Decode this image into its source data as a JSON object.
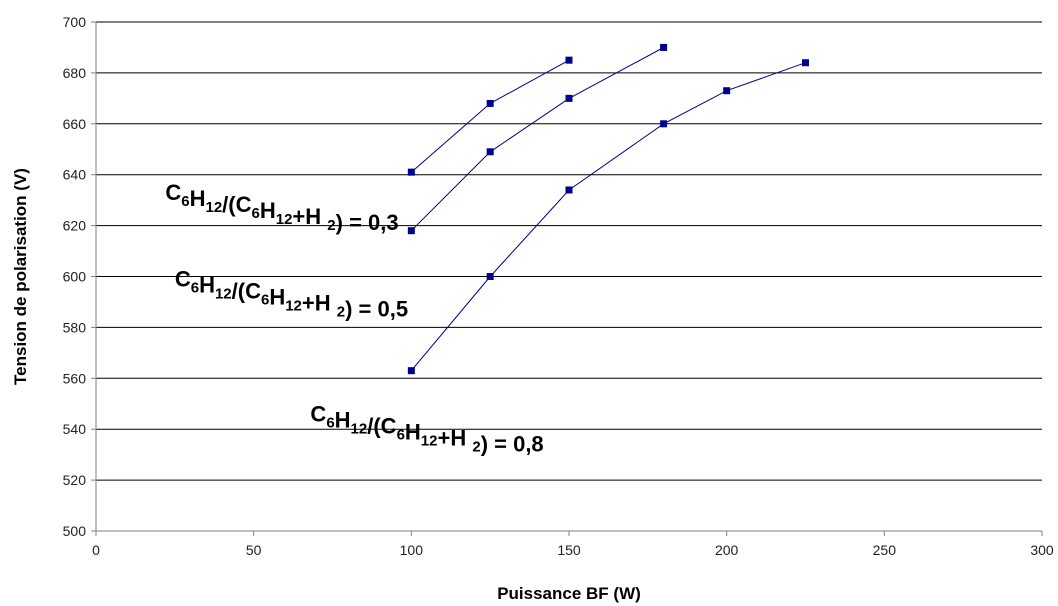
{
  "chart_data": {
    "type": "line",
    "title": "",
    "xlabel": "Puissance BF  (W)",
    "ylabel": "Tension de polarisation (V)",
    "xlim": [
      0,
      300
    ],
    "ylim": [
      500,
      700
    ],
    "xticks": [
      0,
      50,
      100,
      150,
      200,
      250,
      300
    ],
    "yticks": [
      500,
      520,
      540,
      560,
      580,
      600,
      620,
      640,
      660,
      680,
      700
    ],
    "grid": "horizontal",
    "legend": "none",
    "colors": {
      "line": "#00008b",
      "marker": "#00008b",
      "grid": "#000000",
      "axis": "#808080"
    },
    "series": [
      {
        "x": [
          100,
          125,
          150
        ],
        "y": [
          641,
          668,
          685
        ]
      },
      {
        "x": [
          100,
          125,
          150,
          180
        ],
        "y": [
          618,
          649,
          670,
          690
        ]
      },
      {
        "x": [
          100,
          125,
          150,
          180,
          200,
          225
        ],
        "y": [
          563,
          600,
          634,
          660,
          673,
          684
        ]
      }
    ],
    "annotations": [
      {
        "text": "C6H12/(C6H12+H 2) = 0,3",
        "x": 22,
        "y": 630,
        "parts": [
          {
            "t": "C"
          },
          {
            "t": "6",
            "sub": true
          },
          {
            "t": "H"
          },
          {
            "t": "12",
            "sub": true
          },
          {
            "t": "/(C"
          },
          {
            "t": "6",
            "sub": true
          },
          {
            "t": "H"
          },
          {
            "t": "12",
            "sub": true
          },
          {
            "t": "+H "
          },
          {
            "t": "2",
            "sub": true
          },
          {
            "t": ") = 0,3"
          }
        ]
      },
      {
        "text": "C6H12/(C6H12+H 2) = 0,5",
        "x": 25,
        "y": 596,
        "parts": [
          {
            "t": "C"
          },
          {
            "t": "6",
            "sub": true
          },
          {
            "t": "H"
          },
          {
            "t": "12",
            "sub": true
          },
          {
            "t": "/(C"
          },
          {
            "t": "6",
            "sub": true
          },
          {
            "t": "H"
          },
          {
            "t": "12",
            "sub": true
          },
          {
            "t": "+H "
          },
          {
            "t": "2",
            "sub": true
          },
          {
            "t": ") = 0,5"
          }
        ]
      },
      {
        "text": "C6H12/(C6H12+H 2) = 0,8",
        "x": 68,
        "y": 543,
        "parts": [
          {
            "t": "C"
          },
          {
            "t": "6",
            "sub": true
          },
          {
            "t": "H"
          },
          {
            "t": "12",
            "sub": true
          },
          {
            "t": "/(C"
          },
          {
            "t": "6",
            "sub": true
          },
          {
            "t": "H"
          },
          {
            "t": "12",
            "sub": true
          },
          {
            "t": "+H "
          },
          {
            "t": "2",
            "sub": true
          },
          {
            "t": ") = 0,8"
          }
        ]
      }
    ]
  }
}
